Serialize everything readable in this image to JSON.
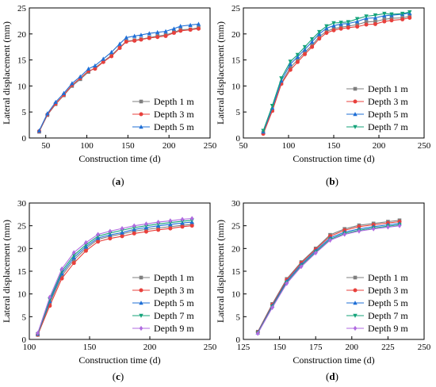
{
  "figure": {
    "panel_labels": [
      "(a)",
      "(b)",
      "(c)",
      "(d)"
    ]
  },
  "styles": {
    "Depth 1 m": {
      "color": "#7f7f7f",
      "marker": "square"
    },
    "Depth 3 m": {
      "color": "#e8403c",
      "marker": "circle"
    },
    "Depth 5 m": {
      "color": "#1f6fd6",
      "marker": "triangle-up"
    },
    "Depth 7 m": {
      "color": "#14a37a",
      "marker": "triangle-down"
    },
    "Depth 9 m": {
      "color": "#b06ae0",
      "marker": "diamond"
    }
  },
  "chart_data": [
    {
      "type": "line",
      "panel": "(a)",
      "xlabel": "Construction time (d)",
      "ylabel": "Lateral displacement (mm)",
      "xlim": [
        30,
        250
      ],
      "ylim": [
        0,
        25
      ],
      "xticks": [
        50,
        100,
        150,
        200,
        250
      ],
      "yticks": [
        0,
        5,
        10,
        15,
        20,
        25
      ],
      "legend": "bottom-right",
      "x": [
        42,
        52,
        62,
        72,
        82,
        92,
        102,
        110,
        120,
        130,
        140,
        148,
        158,
        166,
        176,
        186,
        196,
        206,
        214,
        226,
        236
      ],
      "series": [
        {
          "name": "Depth 1 m",
          "values": [
            1.2,
            4.4,
            6.5,
            8.2,
            10.0,
            11.3,
            12.7,
            13.5,
            14.7,
            15.9,
            17.4,
            18.6,
            18.8,
            19.0,
            19.3,
            19.6,
            19.8,
            20.3,
            20.8,
            20.9,
            21.2
          ]
        },
        {
          "name": "Depth 3 m",
          "values": [
            1.3,
            4.5,
            6.6,
            8.3,
            10.2,
            11.5,
            12.9,
            13.3,
            14.6,
            15.7,
            17.3,
            18.5,
            18.7,
            18.9,
            19.2,
            19.4,
            19.6,
            20.2,
            20.6,
            20.8,
            21.0
          ]
        },
        {
          "name": "Depth 5 m",
          "values": [
            1.4,
            4.7,
            6.9,
            8.6,
            10.5,
            11.8,
            13.3,
            13.9,
            15.2,
            16.5,
            18.1,
            19.3,
            19.6,
            19.8,
            20.1,
            20.3,
            20.5,
            21.0,
            21.5,
            21.7,
            21.9
          ]
        }
      ]
    },
    {
      "type": "line",
      "panel": "(b)",
      "xlabel": "Construction time (d)",
      "ylabel": "Lateral displacement (mm)",
      "xlim": [
        50,
        250
      ],
      "ylim": [
        0,
        25
      ],
      "xticks": [
        50,
        100,
        150,
        200,
        250
      ],
      "yticks": [
        0,
        5,
        10,
        15,
        20,
        25
      ],
      "legend": "bottom-right",
      "x": [
        72,
        82,
        92,
        102,
        110,
        118,
        126,
        134,
        142,
        150,
        158,
        166,
        176,
        186,
        196,
        206,
        214,
        226,
        234
      ],
      "series": [
        {
          "name": "Depth 1 m",
          "values": [
            1.0,
            5.3,
            10.5,
            13.6,
            15.0,
            16.5,
            17.8,
            19.5,
            20.5,
            21.0,
            21.3,
            21.5,
            21.8,
            22.3,
            22.4,
            22.8,
            23.0,
            23.1,
            23.4
          ]
        },
        {
          "name": "Depth 3 m",
          "values": [
            0.8,
            5.2,
            10.4,
            13.1,
            14.6,
            16.1,
            17.5,
            19.1,
            20.2,
            20.7,
            21.0,
            21.2,
            21.4,
            21.8,
            21.9,
            22.4,
            22.6,
            22.8,
            23.1
          ]
        },
        {
          "name": "Depth 5 m",
          "values": [
            1.2,
            5.8,
            11.0,
            14.2,
            15.6,
            17.0,
            18.5,
            20.0,
            21.1,
            21.6,
            21.9,
            22.0,
            22.4,
            23.0,
            23.1,
            23.5,
            23.6,
            23.8,
            24.0
          ]
        },
        {
          "name": "Depth 7 m",
          "values": [
            1.4,
            6.2,
            11.5,
            14.7,
            16.0,
            17.5,
            19.0,
            20.4,
            21.5,
            22.1,
            22.2,
            22.3,
            22.9,
            23.4,
            23.6,
            23.9,
            23.8,
            23.9,
            24.2
          ]
        }
      ]
    },
    {
      "type": "line",
      "panel": "(c)",
      "xlabel": "Construction time (d)",
      "ylabel": "Lateral displacement (mm)",
      "xlim": [
        100,
        250
      ],
      "ylim": [
        0,
        30
      ],
      "xticks": [
        100,
        150,
        200,
        250
      ],
      "yticks": [
        0,
        5,
        10,
        15,
        20,
        25,
        30
      ],
      "legend": "bottom-right",
      "x": [
        107,
        117,
        127,
        137,
        147,
        157,
        167,
        177,
        187,
        197,
        207,
        217,
        227,
        235
      ],
      "series": [
        {
          "name": "Depth 1 m",
          "values": [
            1.0,
            8.0,
            14.0,
            17.5,
            20.0,
            22.0,
            22.7,
            23.2,
            23.8,
            24.2,
            24.5,
            24.8,
            25.1,
            25.3
          ]
        },
        {
          "name": "Depth 3 m",
          "values": [
            1.0,
            7.4,
            13.4,
            16.8,
            19.5,
            21.5,
            22.2,
            22.7,
            23.3,
            23.7,
            24.1,
            24.4,
            24.8,
            25.0
          ]
        },
        {
          "name": "Depth 5 m",
          "values": [
            1.2,
            8.4,
            14.5,
            18.0,
            20.4,
            22.3,
            23.0,
            23.5,
            24.2,
            24.6,
            25.0,
            25.3,
            25.6,
            25.8
          ]
        },
        {
          "name": "Depth 7 m",
          "values": [
            1.2,
            8.8,
            15.0,
            18.5,
            20.8,
            22.7,
            23.4,
            24.0,
            24.6,
            25.0,
            25.4,
            25.7,
            26.0,
            26.2
          ]
        },
        {
          "name": "Depth 9 m",
          "values": [
            1.4,
            9.3,
            15.5,
            19.1,
            21.3,
            23.1,
            23.8,
            24.4,
            25.0,
            25.4,
            25.8,
            26.1,
            26.4,
            26.6
          ]
        }
      ]
    },
    {
      "type": "line",
      "panel": "(d)",
      "xlabel": "Construction time (d)",
      "ylabel": "Lateral displacement (mm)",
      "xlim": [
        125,
        250
      ],
      "ylim": [
        0,
        30
      ],
      "xticks": [
        125,
        150,
        175,
        200,
        225,
        250
      ],
      "yticks": [
        0,
        5,
        10,
        15,
        20,
        25,
        30
      ],
      "legend": "bottom-right",
      "x": [
        135,
        145,
        155,
        165,
        175,
        185,
        195,
        205,
        215,
        225,
        233
      ],
      "series": [
        {
          "name": "Depth 1 m",
          "values": [
            1.7,
            7.8,
            13.3,
            17.0,
            20.0,
            23.0,
            24.3,
            25.1,
            25.5,
            25.9,
            26.2
          ]
        },
        {
          "name": "Depth 3 m",
          "values": [
            1.6,
            7.6,
            13.1,
            16.8,
            19.8,
            22.7,
            24.0,
            24.8,
            25.2,
            25.6,
            25.9
          ]
        },
        {
          "name": "Depth 5 m",
          "values": [
            1.5,
            7.4,
            12.8,
            16.5,
            19.5,
            22.3,
            23.6,
            24.3,
            24.8,
            25.2,
            25.5
          ]
        },
        {
          "name": "Depth 7 m",
          "values": [
            1.4,
            7.2,
            12.5,
            16.2,
            19.2,
            22.0,
            23.3,
            24.0,
            24.5,
            24.9,
            25.2
          ]
        },
        {
          "name": "Depth 9 m",
          "values": [
            1.3,
            7.0,
            12.3,
            16.0,
            19.0,
            21.8,
            23.1,
            23.8,
            24.3,
            24.7,
            25.0
          ]
        }
      ]
    }
  ]
}
